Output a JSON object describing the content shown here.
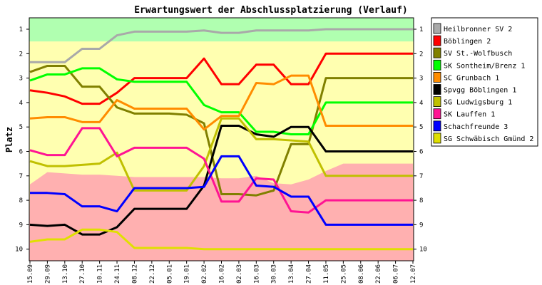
{
  "chart_data": {
    "type": "line",
    "title": "Erwartungswert der Abschlussplatzierung (Verlauf)",
    "ylabel": "Platz",
    "xlabel": "",
    "ylim": [
      1,
      10
    ],
    "y_inverted": true,
    "y_ticks": [
      "1",
      "2",
      "3",
      "4",
      "5",
      "6",
      "7",
      "8",
      "9",
      "10"
    ],
    "grid": false,
    "legend_position": "right",
    "categories": [
      "15.09",
      "29.09",
      "13.10",
      "27.10",
      "10.11",
      "24.11",
      "08.12",
      "22.12",
      "05.01",
      "19.01",
      "02.02",
      "16.02",
      "02.03",
      "16.03",
      "30.03",
      "13.04",
      "27.04",
      "11.05",
      "25.05",
      "08.06",
      "22.06",
      "06.07",
      "12.07"
    ],
    "colors": {
      "background": "#ffffff",
      "plot_base": "#ffffb0",
      "zone_top": "#b0ffb0",
      "zone_bottom": "#ffb0b0"
    },
    "series": [
      {
        "name": "Heilbronner SV 2",
        "color": "#a9a9a9",
        "values": [
          2.35,
          2.35,
          2.35,
          1.8,
          1.8,
          1.25,
          1.1,
          1.1,
          1.1,
          1.1,
          1.05,
          1.15,
          1.15,
          1.05,
          1.05,
          1.05,
          1.05,
          1.0,
          1.0,
          1.0,
          1.0,
          1.0,
          1.0
        ]
      },
      {
        "name": "Böblingen 2",
        "color": "#ff0000",
        "values": [
          3.5,
          3.6,
          3.75,
          4.05,
          4.05,
          3.6,
          3.0,
          3.0,
          3.0,
          3.0,
          2.2,
          3.25,
          3.25,
          2.45,
          2.45,
          3.25,
          3.25,
          2.0,
          2.0,
          2.0,
          2.0,
          2.0,
          2.0
        ]
      },
      {
        "name": "SV St.-Wolfbusch",
        "color": "#808000",
        "values": [
          2.75,
          2.5,
          2.5,
          3.35,
          3.35,
          4.2,
          4.45,
          4.45,
          4.45,
          4.5,
          4.85,
          7.75,
          7.75,
          7.8,
          7.6,
          5.7,
          5.7,
          3.0,
          3.0,
          3.0,
          3.0,
          3.0,
          3.0
        ]
      },
      {
        "name": "SK Sontheim/Brenz 1",
        "color": "#00ff00",
        "values": [
          3.1,
          2.85,
          2.85,
          2.6,
          2.6,
          3.05,
          3.15,
          3.15,
          3.15,
          3.15,
          4.1,
          4.4,
          4.4,
          5.2,
          5.2,
          5.3,
          5.3,
          4.0,
          4.0,
          4.0,
          4.0,
          4.0,
          4.0
        ]
      },
      {
        "name": "SC Grunbach 1",
        "color": "#ff8c00",
        "values": [
          4.65,
          4.6,
          4.6,
          4.8,
          4.8,
          3.9,
          4.25,
          4.25,
          4.25,
          4.25,
          5.1,
          4.55,
          4.55,
          3.2,
          3.25,
          2.9,
          2.9,
          4.95,
          4.95,
          4.95,
          4.95,
          4.95,
          4.95
        ]
      },
      {
        "name": "Spvgg Böblingen 1",
        "color": "#000000",
        "values": [
          9.0,
          9.05,
          9.0,
          9.4,
          9.4,
          9.1,
          8.35,
          8.35,
          8.35,
          8.35,
          7.4,
          4.95,
          4.95,
          5.3,
          5.4,
          5.0,
          5.0,
          6.0,
          6.0,
          6.0,
          6.0,
          6.0,
          6.0
        ]
      },
      {
        "name": "SG Ludwigsburg 1",
        "color": "#c0c000",
        "values": [
          6.4,
          6.6,
          6.6,
          6.55,
          6.5,
          6.05,
          7.6,
          7.6,
          7.6,
          7.6,
          6.6,
          4.65,
          4.65,
          5.5,
          5.5,
          5.55,
          5.6,
          7.0,
          7.0,
          7.0,
          7.0,
          7.0,
          7.0
        ]
      },
      {
        "name": "SK Lauffen 1",
        "color": "#ff1493",
        "values": [
          5.95,
          6.15,
          6.15,
          5.05,
          5.05,
          6.2,
          5.85,
          5.85,
          5.85,
          5.85,
          6.3,
          8.05,
          8.05,
          7.1,
          7.15,
          8.45,
          8.5,
          8.0,
          8.0,
          8.0,
          8.0,
          8.0,
          8.0
        ]
      },
      {
        "name": "Schachfreunde 3",
        "color": "#0000ff",
        "values": [
          7.7,
          7.7,
          7.75,
          8.25,
          8.25,
          8.45,
          7.5,
          7.5,
          7.5,
          7.5,
          7.45,
          6.2,
          6.2,
          7.4,
          7.45,
          7.85,
          7.85,
          9.0,
          9.0,
          9.0,
          9.0,
          9.0,
          9.0
        ]
      },
      {
        "name": "SG Schwäbisch Gmünd 2",
        "color": "#e0e000",
        "values": [
          9.7,
          9.6,
          9.6,
          9.2,
          9.2,
          9.3,
          9.95,
          9.95,
          9.95,
          9.95,
          10.0,
          10.0,
          10.0,
          10.0,
          10.0,
          10.0,
          10.0,
          10.0,
          10.0,
          10.0,
          10.0,
          10.0,
          10.0
        ]
      }
    ]
  }
}
